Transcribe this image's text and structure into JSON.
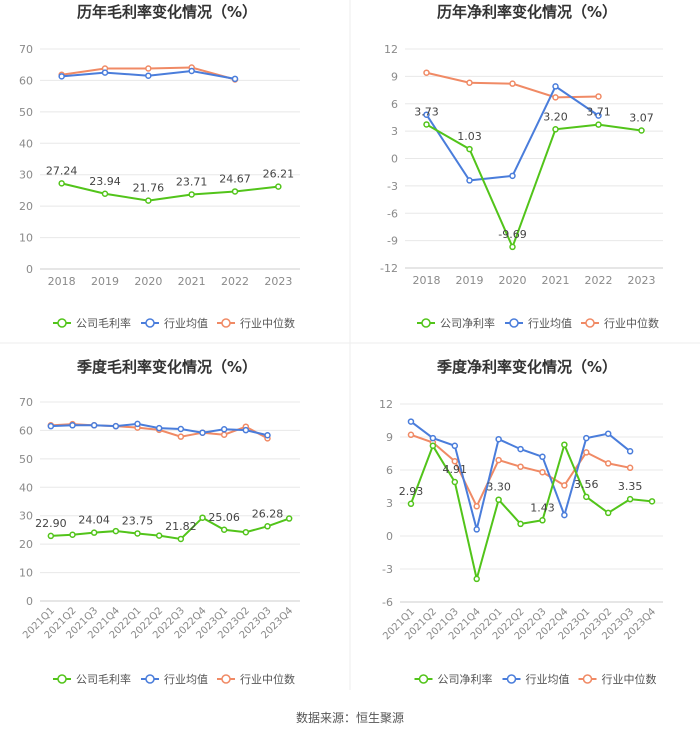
{
  "legend_labels": {
    "company_gross": "公司毛利率",
    "company_net": "公司净利率",
    "industry_avg": "行业均值",
    "industry_median": "行业中位数"
  },
  "colors": {
    "company": "#52c41a",
    "industry_avg": "#4a7ddb",
    "industry_median": "#f08a65",
    "grid": "#e8e8e8",
    "axis_text": "#8a8a8a",
    "title": "#333333",
    "divider": "#eeeeee"
  },
  "footer": {
    "source": "数据来源：恒生聚源"
  },
  "chart_data": [
    {
      "id": "annual-gross",
      "type": "line",
      "title": "历年毛利率变化情况（%）",
      "categories": [
        "2018",
        "2019",
        "2020",
        "2021",
        "2022",
        "2023"
      ],
      "yticks": [
        0,
        10,
        20,
        30,
        40,
        50,
        60,
        70
      ],
      "ylim": [
        0,
        70
      ],
      "series": [
        {
          "name": "公司毛利率",
          "color_key": "company",
          "values": [
            27.24,
            23.94,
            21.76,
            23.71,
            24.67,
            26.21
          ],
          "labels": [
            "27.24",
            "23.94",
            "21.76",
            "23.71",
            "24.67",
            "26.21"
          ]
        },
        {
          "name": "行业均值",
          "color_key": "industry_avg",
          "values": [
            61.3,
            62.5,
            61.5,
            63.0,
            60.5,
            null
          ],
          "labels": []
        },
        {
          "name": "行业中位数",
          "color_key": "industry_median",
          "values": [
            61.8,
            63.8,
            63.8,
            64.1,
            60.3,
            null
          ],
          "labels": []
        }
      ],
      "legend": "bottom"
    },
    {
      "id": "annual-net",
      "type": "line",
      "title": "历年净利率变化情况（%）",
      "categories": [
        "2018",
        "2019",
        "2020",
        "2021",
        "2022",
        "2023"
      ],
      "yticks": [
        -12,
        -9,
        -6,
        -3,
        0,
        3,
        6,
        9,
        12
      ],
      "ylim": [
        -12,
        12
      ],
      "series": [
        {
          "name": "公司净利率",
          "color_key": "company",
          "values": [
            3.73,
            1.03,
            -9.69,
            3.2,
            3.71,
            3.07
          ],
          "labels": [
            "3.73",
            "1.03",
            "-9.69",
            "3.20",
            "3.71",
            "3.07"
          ]
        },
        {
          "name": "行业均值",
          "color_key": "industry_avg",
          "values": [
            4.8,
            -2.4,
            -1.9,
            7.9,
            4.7,
            null
          ],
          "labels": []
        },
        {
          "name": "行业中位数",
          "color_key": "industry_median",
          "values": [
            9.4,
            8.3,
            8.2,
            6.7,
            6.8,
            null
          ],
          "labels": []
        }
      ],
      "legend": "bottom"
    },
    {
      "id": "quarterly-gross",
      "type": "line",
      "title": "季度毛利率变化情况（%）",
      "categories": [
        "2021Q1",
        "2021Q2",
        "2021Q3",
        "2021Q4",
        "2022Q1",
        "2022Q2",
        "2022Q3",
        "2022Q4",
        "2023Q1",
        "2023Q2",
        "2023Q3",
        "2023Q4"
      ],
      "yticks": [
        0,
        10,
        20,
        30,
        40,
        50,
        60,
        70
      ],
      "ylim": [
        0,
        70
      ],
      "series": [
        {
          "name": "公司毛利率",
          "color_key": "company",
          "values": [
            22.9,
            23.3,
            24.04,
            24.6,
            23.75,
            23.0,
            21.82,
            29.3,
            25.06,
            24.2,
            26.28,
            29.0
          ],
          "labels": [
            "22.90",
            null,
            "24.04",
            null,
            "23.75",
            null,
            "21.82",
            null,
            "25.06",
            null,
            "26.28",
            null
          ]
        },
        {
          "name": "行业均值",
          "color_key": "industry_avg",
          "values": [
            61.5,
            61.8,
            61.8,
            61.5,
            62.3,
            60.8,
            60.5,
            59.2,
            60.4,
            60.1,
            58.3,
            null
          ],
          "labels": []
        },
        {
          "name": "行业中位数",
          "color_key": "industry_median",
          "values": [
            61.8,
            62.2,
            61.8,
            61.5,
            61.0,
            60.2,
            57.8,
            59.2,
            58.5,
            61.3,
            57.2,
            null
          ],
          "labels": []
        }
      ],
      "legend": "bottom"
    },
    {
      "id": "quarterly-net",
      "type": "line",
      "title": "季度净利率变化情况（%）",
      "categories": [
        "2021Q1",
        "2021Q2",
        "2021Q3",
        "2021Q4",
        "2022Q1",
        "2022Q2",
        "2022Q3",
        "2022Q4",
        "2023Q1",
        "2023Q2",
        "2023Q3",
        "2023Q4"
      ],
      "yticks": [
        -6,
        -3,
        0,
        3,
        6,
        9,
        12
      ],
      "ylim": [
        -6,
        12
      ],
      "series": [
        {
          "name": "公司净利率",
          "color_key": "company",
          "values": [
            2.93,
            8.2,
            4.91,
            -3.9,
            3.3,
            1.1,
            1.43,
            8.3,
            3.56,
            2.1,
            3.35,
            3.15
          ],
          "labels": [
            "2.93",
            null,
            "4.91",
            null,
            "3.30",
            null,
            "1.43",
            null,
            "3.56",
            null,
            "3.35",
            null
          ]
        },
        {
          "name": "行业均值",
          "color_key": "industry_avg",
          "values": [
            10.4,
            8.9,
            8.2,
            0.6,
            8.8,
            7.9,
            7.2,
            1.9,
            8.9,
            9.3,
            7.7,
            null
          ],
          "labels": []
        },
        {
          "name": "行业中位数",
          "color_key": "industry_median",
          "values": [
            9.2,
            8.5,
            6.8,
            2.7,
            6.9,
            6.3,
            5.8,
            4.6,
            7.6,
            6.6,
            6.2,
            null
          ],
          "labels": []
        }
      ],
      "legend": "bottom"
    }
  ]
}
